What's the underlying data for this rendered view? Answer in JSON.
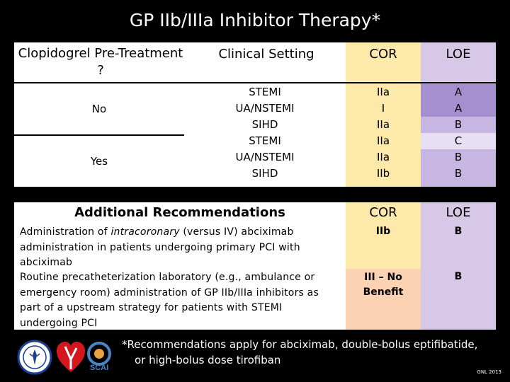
{
  "title": "GP IIb/IIIa Inhibitor Therapy*",
  "table": {
    "headers": {
      "pretreatment": "Clopidogrel Pre-Treatment ?",
      "setting": "Clinical Setting",
      "cor": "COR",
      "loe": "LOE"
    },
    "groups": [
      {
        "pretreatment": "No",
        "rows": [
          {
            "setting": "STEMI",
            "cor": "IIa",
            "loe": "A"
          },
          {
            "setting": "UA/NSTEMI",
            "cor": "I",
            "loe": "A"
          },
          {
            "setting": "SIHD",
            "cor": "IIa",
            "loe": "B"
          }
        ]
      },
      {
        "pretreatment": "Yes",
        "rows": [
          {
            "setting": "STEMI",
            "cor": "IIa",
            "loe": "C"
          },
          {
            "setting": "UA/NSTEMI",
            "cor": "IIa",
            "loe": "B"
          },
          {
            "setting": "SIHD",
            "cor": "IIb",
            "loe": "B"
          }
        ]
      }
    ]
  },
  "additional": {
    "header": "Additional Recommendations",
    "cor_header": "COR",
    "loe_header": "LOE",
    "items": [
      {
        "text_before": "Administration of ",
        "text_italic": "intracoronary",
        "text_after": " (versus IV) abciximab administration in patients undergoing primary PCI with abciximab",
        "cor": "IIb",
        "loe": "B"
      },
      {
        "text": "Routine precatheterization laboratory (e.g., ambulance or emergency room) administration of GP IIb/IIIa inhibitors as part of a upstream strategy for patients with STEMI undergoing PCI",
        "cor": "III – No Benefit",
        "loe": "B"
      }
    ]
  },
  "footnote_line1": "*Recommendations apply for abciximab, double-bolus eptifibatide,",
  "footnote_line2": "or high-bolus dose tirofiban",
  "copyright": "GNL 2013",
  "colors": {
    "background": "#000000",
    "cor_IIa": "#fde9a9",
    "cor_III": "#fbd3b2",
    "loe_A": "#a58fcf",
    "loe_B": "#c8b6e2",
    "loe_C": "#e7dff3",
    "pale_loe": "#d8c8e8"
  },
  "logos": [
    "acc-logo",
    "aha-heart-logo",
    "scai-logo"
  ],
  "logo_text": "SCAI"
}
